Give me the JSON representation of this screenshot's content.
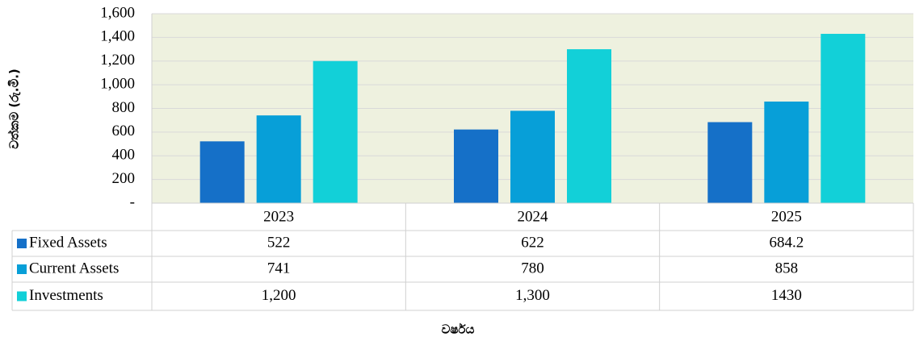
{
  "chart_data": {
    "type": "bar",
    "y_label": "වත්කම (රු.මි.)",
    "x_label": "වර්ෂය",
    "categories": [
      "2023",
      "2024",
      "2025"
    ],
    "series": [
      {
        "name": "Fixed Assets",
        "color": "#1570c8",
        "values": [
          522,
          622,
          684.2
        ]
      },
      {
        "name": "Current Assets",
        "color": "#079fd8",
        "values": [
          741,
          780,
          858
        ]
      },
      {
        "name": "Investments",
        "color": "#12d0d8",
        "values": [
          1200,
          1300,
          1430
        ],
        "value_labels": [
          "1,200",
          "1,300",
          "1430"
        ]
      }
    ],
    "ylim": [
      0,
      1600
    ],
    "yticks": [
      {
        "value": 0,
        "label": "-"
      },
      200,
      400,
      600,
      800,
      {
        "value": 1000,
        "label": "1,000"
      },
      {
        "value": 1200,
        "label": "1,200"
      },
      {
        "value": 1400,
        "label": "1,400"
      },
      {
        "value": 1600,
        "label": "1,600"
      }
    ],
    "grid": true
  }
}
